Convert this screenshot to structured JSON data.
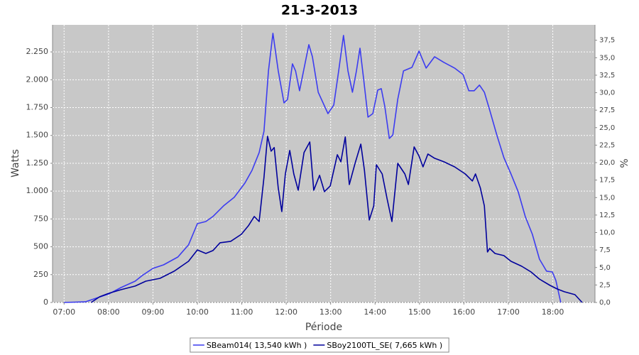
{
  "chart_data": {
    "type": "line",
    "title": "21-3-2013",
    "xlabel": "Période",
    "ylabel": "Watts",
    "y2label": "%",
    "xlim": [
      6.74,
      18.95
    ],
    "xticks": [
      {
        "value": 7,
        "label": "07:00"
      },
      {
        "value": 8,
        "label": "08:00"
      },
      {
        "value": 9,
        "label": "09:00"
      },
      {
        "value": 10,
        "label": "10:00"
      },
      {
        "value": 11,
        "label": "11:00"
      },
      {
        "value": 12,
        "label": "12:00"
      },
      {
        "value": 13,
        "label": "13:00"
      },
      {
        "value": 14,
        "label": "14:00"
      },
      {
        "value": 15,
        "label": "15:00"
      },
      {
        "value": 16,
        "label": "16:00"
      },
      {
        "value": 17,
        "label": "17:00"
      },
      {
        "value": 18,
        "label": "18:00"
      }
    ],
    "ylim": [
      0,
      2493
    ],
    "yticks": [
      0,
      250,
      500,
      750,
      {
        "value": 1000,
        "label": "1.000"
      },
      {
        "value": 1250,
        "label": "1.250"
      },
      {
        "value": 1500,
        "label": "1.500"
      },
      {
        "value": 1750,
        "label": "1.750"
      },
      {
        "value": 2000,
        "label": "2.000"
      },
      {
        "value": 2250,
        "label": "2.250"
      }
    ],
    "y2lim": [
      0,
      39.7
    ],
    "y2ticks": [
      {
        "value": 0,
        "label": "0,0"
      },
      {
        "value": 2.5,
        "label": "2,5"
      },
      {
        "value": 5,
        "label": "5,0"
      },
      {
        "value": 7.5,
        "label": "7,5"
      },
      {
        "value": 10,
        "label": "10,0"
      },
      {
        "value": 12.5,
        "label": "12,5"
      },
      {
        "value": 15,
        "label": "15,0"
      },
      {
        "value": 17.5,
        "label": "17,5"
      },
      {
        "value": 20,
        "label": "20,0"
      },
      {
        "value": 22.5,
        "label": "22,5"
      },
      {
        "value": 25,
        "label": "25,0"
      },
      {
        "value": 27.5,
        "label": "27,5"
      },
      {
        "value": 30,
        "label": "30,0"
      },
      {
        "value": 32.5,
        "label": "32,5"
      },
      {
        "value": 35,
        "label": "35,0"
      },
      {
        "value": 37.5,
        "label": "37,5"
      }
    ],
    "grid": true,
    "legend": "bottom",
    "series": [
      {
        "name": "SBeam014( 13,540 kWh )",
        "color": "#3c3cf0",
        "x": [
          7.0,
          7.48,
          7.72,
          8.01,
          8.28,
          8.6,
          8.76,
          9.0,
          9.24,
          9.56,
          9.8,
          10.0,
          10.19,
          10.35,
          10.59,
          10.83,
          11.07,
          11.23,
          11.39,
          11.5,
          11.6,
          11.7,
          11.82,
          11.95,
          12.03,
          12.14,
          12.21,
          12.3,
          12.51,
          12.59,
          12.72,
          12.94,
          13.07,
          13.18,
          13.29,
          13.39,
          13.49,
          13.58,
          13.66,
          13.74,
          13.84,
          13.95,
          14.06,
          14.14,
          14.22,
          14.32,
          14.4,
          14.51,
          14.64,
          14.83,
          14.99,
          15.15,
          15.34,
          15.55,
          15.79,
          15.98,
          16.11,
          16.23,
          16.35,
          16.46,
          16.58,
          16.74,
          16.9,
          17.06,
          17.22,
          17.38,
          17.54,
          17.7,
          17.86,
          17.99,
          18.07,
          18.18
        ],
        "values": [
          0,
          6,
          38,
          77,
          134,
          191,
          242,
          306,
          338,
          408,
          517,
          708,
          727,
          772,
          868,
          944,
          1072,
          1186,
          1346,
          1537,
          2079,
          2417,
          2079,
          1792,
          1824,
          2143,
          2079,
          1901,
          2315,
          2207,
          1888,
          1696,
          1773,
          2079,
          2398,
          2079,
          1888,
          2079,
          2283,
          2015,
          1664,
          1696,
          1907,
          1920,
          1760,
          1473,
          1505,
          1824,
          2079,
          2111,
          2258,
          2105,
          2207,
          2156,
          2105,
          2047,
          1901,
          1901,
          1952,
          1888,
          1728,
          1505,
          1301,
          1154,
          995,
          772,
          612,
          389,
          281,
          274,
          198,
          0
        ]
      },
      {
        "name": "SBoy2100TL_SE( 7,665 kWh )",
        "color": "#00009c",
        "x": [
          7.61,
          7.8,
          8.01,
          8.28,
          8.6,
          8.84,
          9.16,
          9.48,
          9.8,
          10.0,
          10.19,
          10.35,
          10.51,
          10.75,
          10.99,
          11.15,
          11.28,
          11.39,
          11.5,
          11.58,
          11.66,
          11.73,
          11.82,
          11.9,
          11.98,
          12.08,
          12.17,
          12.27,
          12.4,
          12.53,
          12.62,
          12.75,
          12.86,
          12.99,
          13.15,
          13.23,
          13.33,
          13.42,
          13.55,
          13.68,
          13.76,
          13.87,
          13.97,
          14.03,
          14.16,
          14.27,
          14.38,
          14.51,
          14.67,
          14.75,
          14.88,
          14.99,
          15.08,
          15.19,
          15.34,
          15.55,
          15.79,
          16.03,
          16.19,
          16.26,
          16.37,
          16.46,
          16.53,
          16.58,
          16.7,
          16.9,
          17.06,
          17.3,
          17.51,
          17.7,
          17.94,
          18.1,
          18.26,
          18.5,
          18.66
        ],
        "values": [
          0,
          51,
          83,
          115,
          147,
          191,
          217,
          281,
          370,
          472,
          440,
          466,
          536,
          549,
          612,
          689,
          772,
          727,
          1123,
          1492,
          1359,
          1391,
          1027,
          816,
          1154,
          1365,
          1154,
          1008,
          1346,
          1441,
          1008,
          1142,
          995,
          1046,
          1327,
          1263,
          1486,
          1059,
          1250,
          1422,
          1186,
          740,
          867,
          1237,
          1154,
          931,
          727,
          1250,
          1154,
          1059,
          1397,
          1314,
          1218,
          1333,
          1295,
          1263,
          1218,
          1154,
          1091,
          1154,
          1027,
          867,
          453,
          485,
          440,
          421,
          370,
          325,
          274,
          210,
          153,
          121,
          96,
          70,
          0
        ]
      }
    ]
  }
}
